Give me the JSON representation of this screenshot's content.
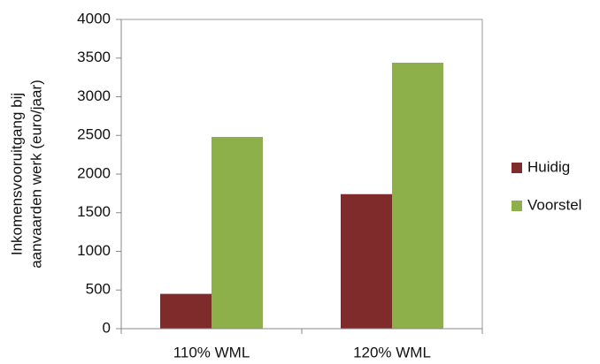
{
  "chart_data": {
    "type": "bar",
    "ylabel": [
      "Inkomensvooruitgang bij",
      "aanvaarden werk (euro/jaar)"
    ],
    "categories": [
      "110% WML",
      "120% WML"
    ],
    "series": [
      {
        "name": "Huidig",
        "color": "#7f2a2b",
        "values": [
          450,
          1740
        ]
      },
      {
        "name": "Voorstel",
        "color": "#8db04b",
        "values": [
          2480,
          3440
        ]
      }
    ],
    "ylim": [
      0,
      4000
    ],
    "yticks": [
      0,
      500,
      1000,
      1500,
      2000,
      2500,
      3000,
      3500,
      4000
    ],
    "grid": false,
    "legend": "right"
  }
}
